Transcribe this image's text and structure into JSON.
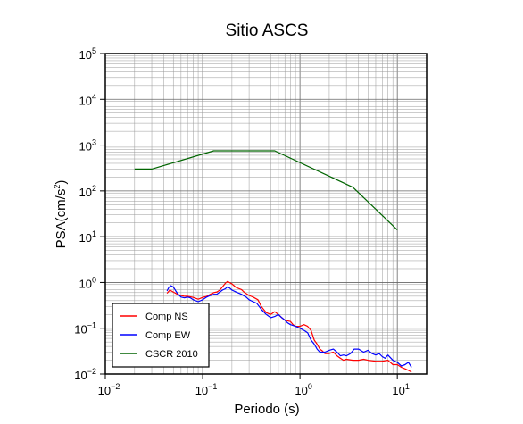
{
  "chart_data": {
    "type": "line",
    "title": "Sitio ASCS",
    "xlabel": "Periodo (s)",
    "ylabel_prefix": "PSA(cm/s",
    "ylabel_sup": "2",
    "ylabel_suffix": ")",
    "x_scale": "log",
    "y_scale": "log",
    "xlim": [
      0.01,
      20
    ],
    "ylim": [
      0.01,
      100000
    ],
    "grid": true,
    "legend_position": "bottom-left",
    "x_ticks": [
      {
        "value": 0.01,
        "base": "10",
        "exp": "−2"
      },
      {
        "value": 0.1,
        "base": "10",
        "exp": "−1"
      },
      {
        "value": 1,
        "base": "10",
        "exp": "0"
      },
      {
        "value": 10,
        "base": "10",
        "exp": "1"
      }
    ],
    "y_ticks": [
      {
        "value": 0.01,
        "base": "10",
        "exp": "−2"
      },
      {
        "value": 0.1,
        "base": "10",
        "exp": "−1"
      },
      {
        "value": 1,
        "base": "10",
        "exp": "0"
      },
      {
        "value": 10,
        "base": "10",
        "exp": "1"
      },
      {
        "value": 100,
        "base": "10",
        "exp": "2"
      },
      {
        "value": 1000,
        "base": "10",
        "exp": "3"
      },
      {
        "value": 10000,
        "base": "10",
        "exp": "4"
      },
      {
        "value": 100000,
        "base": "10",
        "exp": "5"
      }
    ],
    "series": [
      {
        "name": "Comp NS",
        "color": "#ff0000",
        "points": [
          [
            0.043,
            0.58
          ],
          [
            0.046,
            0.68
          ],
          [
            0.05,
            0.62
          ],
          [
            0.055,
            0.55
          ],
          [
            0.06,
            0.52
          ],
          [
            0.065,
            0.5
          ],
          [
            0.07,
            0.5
          ],
          [
            0.08,
            0.47
          ],
          [
            0.09,
            0.43
          ],
          [
            0.1,
            0.47
          ],
          [
            0.11,
            0.5
          ],
          [
            0.12,
            0.55
          ],
          [
            0.13,
            0.6
          ],
          [
            0.14,
            0.62
          ],
          [
            0.15,
            0.68
          ],
          [
            0.16,
            0.8
          ],
          [
            0.17,
            0.95
          ],
          [
            0.18,
            1.05
          ],
          [
            0.2,
            0.93
          ],
          [
            0.22,
            0.78
          ],
          [
            0.25,
            0.7
          ],
          [
            0.27,
            0.6
          ],
          [
            0.3,
            0.52
          ],
          [
            0.33,
            0.48
          ],
          [
            0.37,
            0.42
          ],
          [
            0.4,
            0.3
          ],
          [
            0.45,
            0.22
          ],
          [
            0.5,
            0.2
          ],
          [
            0.55,
            0.23
          ],
          [
            0.6,
            0.2
          ],
          [
            0.65,
            0.17
          ],
          [
            0.7,
            0.15
          ],
          [
            0.8,
            0.14
          ],
          [
            0.85,
            0.12
          ],
          [
            0.9,
            0.11
          ],
          [
            1.0,
            0.11
          ],
          [
            1.1,
            0.12
          ],
          [
            1.2,
            0.11
          ],
          [
            1.3,
            0.09
          ],
          [
            1.4,
            0.055
          ],
          [
            1.5,
            0.045
          ],
          [
            1.6,
            0.035
          ],
          [
            1.7,
            0.032
          ],
          [
            1.8,
            0.028
          ],
          [
            2.0,
            0.028
          ],
          [
            2.2,
            0.03
          ],
          [
            2.4,
            0.025
          ],
          [
            2.6,
            0.022
          ],
          [
            2.8,
            0.02
          ],
          [
            3.0,
            0.021
          ],
          [
            3.5,
            0.02
          ],
          [
            4.0,
            0.02
          ],
          [
            4.5,
            0.021
          ],
          [
            5.0,
            0.02
          ],
          [
            6.0,
            0.019
          ],
          [
            7.0,
            0.019
          ],
          [
            8.0,
            0.02
          ],
          [
            9.0,
            0.016
          ],
          [
            10.0,
            0.016
          ],
          [
            11.0,
            0.014
          ],
          [
            12.0,
            0.013
          ],
          [
            13.0,
            0.012
          ],
          [
            14.0,
            0.011
          ]
        ]
      },
      {
        "name": "Comp EW",
        "color": "#0000ff",
        "points": [
          [
            0.043,
            0.65
          ],
          [
            0.045,
            0.78
          ],
          [
            0.047,
            0.85
          ],
          [
            0.05,
            0.8
          ],
          [
            0.053,
            0.65
          ],
          [
            0.056,
            0.55
          ],
          [
            0.06,
            0.48
          ],
          [
            0.065,
            0.46
          ],
          [
            0.07,
            0.48
          ],
          [
            0.075,
            0.46
          ],
          [
            0.08,
            0.42
          ],
          [
            0.09,
            0.38
          ],
          [
            0.1,
            0.42
          ],
          [
            0.11,
            0.48
          ],
          [
            0.12,
            0.52
          ],
          [
            0.13,
            0.55
          ],
          [
            0.14,
            0.55
          ],
          [
            0.15,
            0.62
          ],
          [
            0.16,
            0.68
          ],
          [
            0.17,
            0.72
          ],
          [
            0.18,
            0.8
          ],
          [
            0.19,
            0.75
          ],
          [
            0.2,
            0.68
          ],
          [
            0.22,
            0.62
          ],
          [
            0.25,
            0.55
          ],
          [
            0.28,
            0.48
          ],
          [
            0.3,
            0.42
          ],
          [
            0.33,
            0.38
          ],
          [
            0.36,
            0.35
          ],
          [
            0.4,
            0.26
          ],
          [
            0.45,
            0.2
          ],
          [
            0.5,
            0.17
          ],
          [
            0.55,
            0.18
          ],
          [
            0.6,
            0.2
          ],
          [
            0.65,
            0.17
          ],
          [
            0.7,
            0.15
          ],
          [
            0.75,
            0.13
          ],
          [
            0.8,
            0.12
          ],
          [
            0.9,
            0.11
          ],
          [
            1.0,
            0.1
          ],
          [
            1.1,
            0.09
          ],
          [
            1.2,
            0.08
          ],
          [
            1.3,
            0.055
          ],
          [
            1.4,
            0.045
          ],
          [
            1.5,
            0.035
          ],
          [
            1.6,
            0.03
          ],
          [
            1.8,
            0.03
          ],
          [
            2.0,
            0.033
          ],
          [
            2.2,
            0.035
          ],
          [
            2.4,
            0.03
          ],
          [
            2.6,
            0.025
          ],
          [
            2.8,
            0.026
          ],
          [
            3.0,
            0.025
          ],
          [
            3.3,
            0.028
          ],
          [
            3.6,
            0.035
          ],
          [
            4.0,
            0.035
          ],
          [
            4.5,
            0.03
          ],
          [
            5.0,
            0.033
          ],
          [
            5.5,
            0.028
          ],
          [
            6.0,
            0.026
          ],
          [
            6.5,
            0.028
          ],
          [
            7.0,
            0.024
          ],
          [
            7.5,
            0.022
          ],
          [
            8.0,
            0.026
          ],
          [
            9.0,
            0.02
          ],
          [
            10.0,
            0.018
          ],
          [
            11.0,
            0.015
          ],
          [
            12.0,
            0.016
          ],
          [
            13.0,
            0.018
          ],
          [
            14.0,
            0.014
          ]
        ]
      },
      {
        "name": "CSCR 2010",
        "color": "#006400",
        "points": [
          [
            0.02,
            300
          ],
          [
            0.03,
            300
          ],
          [
            0.13,
            750
          ],
          [
            0.55,
            750
          ],
          [
            3.5,
            120
          ],
          [
            10.0,
            14
          ]
        ]
      }
    ]
  }
}
